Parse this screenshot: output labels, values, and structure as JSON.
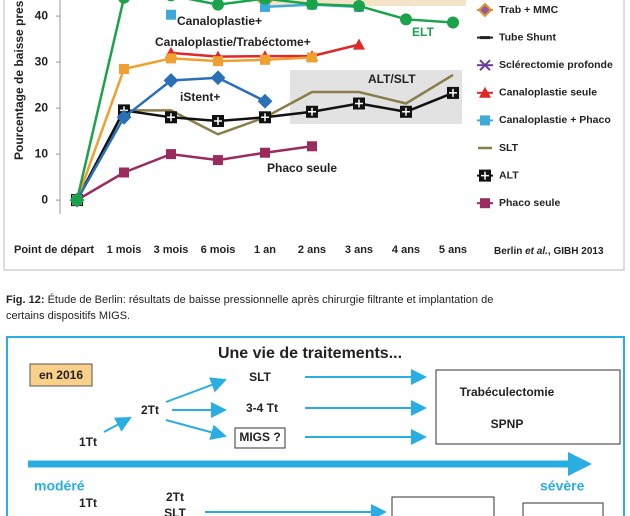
{
  "chart_data": {
    "type": "line",
    "ylabel": "Pourcentage de baisse pres",
    "categories": [
      "Point de départ",
      "1 mois",
      "3 mois",
      "6 mois",
      "1 an",
      "2 ans",
      "3 ans",
      "4 ans",
      "5 ans"
    ],
    "ylim": [
      -3,
      43.5
    ],
    "yticks": [
      0,
      10,
      20,
      30,
      40
    ],
    "series": [
      {
        "name": "Trab + MMC",
        "color": "#e8902a",
        "marker": "diamond",
        "legend": true,
        "values": [
          null,
          null,
          null,
          null,
          43.2,
          null,
          null,
          null,
          null
        ]
      },
      {
        "name": "Tube Shunt",
        "color": "#222222",
        "marker": "dash",
        "legend": true,
        "values": [
          null,
          null,
          null,
          null,
          null,
          null,
          null,
          null,
          null
        ]
      },
      {
        "name": "Sclérectomie profonde",
        "color": "#6a3d9a",
        "marker": "x",
        "legend": true,
        "values": [
          null,
          null,
          null,
          null,
          null,
          null,
          null,
          null,
          null
        ]
      },
      {
        "name": "Canaloplastie seule",
        "color": "#e02828",
        "marker": "triangle",
        "legend": true,
        "values": [
          null,
          null,
          32,
          31.2,
          31.3,
          31.3,
          33.8,
          null,
          null
        ]
      },
      {
        "name": "Canaloplastie + Phaco",
        "color": "#3fa9d9",
        "marker": "square",
        "legend": true,
        "values": [
          null,
          null,
          40.3,
          null,
          42,
          42.5,
          42,
          null,
          null
        ]
      },
      {
        "name": "SLT",
        "color": "#8b7d4a",
        "marker": "none",
        "legend": true,
        "values": [
          0,
          19.5,
          19.5,
          14.3,
          18,
          23.5,
          23.5,
          21,
          27.2
        ]
      },
      {
        "name": "ALT",
        "color": "#111111",
        "marker": "plus-square",
        "legend": true,
        "values": [
          0,
          19.5,
          18,
          17.2,
          18,
          19.2,
          21,
          19.2,
          23.3
        ]
      },
      {
        "name": "Phaco seule",
        "color": "#9b2a5e",
        "marker": "square",
        "legend": true,
        "values": [
          0,
          6,
          10,
          8.7,
          10.3,
          11.7,
          null,
          null,
          null
        ]
      },
      {
        "name": "Canaloplastie/Trabéctome+",
        "color": "#f0a030",
        "marker": "square",
        "legend": false,
        "values": [
          0,
          28.5,
          30.8,
          30.2,
          30.5,
          31,
          null,
          null,
          null
        ]
      },
      {
        "name": "iStent+",
        "color": "#2a70b8",
        "marker": "diamond",
        "legend": false,
        "values": [
          0,
          18,
          26,
          26.6,
          21.5,
          null,
          null,
          null,
          null
        ]
      },
      {
        "name": "ELT",
        "color": "#1aa34a",
        "marker": "circle",
        "legend": false,
        "values": [
          0,
          44,
          44.5,
          42.5,
          43.8,
          42.6,
          42.2,
          39.3,
          38.6
        ]
      }
    ],
    "annotations": [
      "Canaloplastie+",
      "ALT/SLT",
      "Phaco seule"
    ],
    "source": [
      "Berlin ",
      "et al.",
      ", GIBH 2013"
    ]
  },
  "caption": {
    "label": "Fig. 12:",
    "text": " Étude de Berlin: résultats de baisse pressionnelle après chirurgie filtrante et implantation de certains dispositifs MIGS."
  },
  "diagram": {
    "title": "Une vie de traitements...",
    "badge": "en 2016",
    "upper": {
      "start": "1Tt",
      "middle": "2Tt",
      "options": [
        "SLT",
        "3-4 Tt",
        "MIGS ?"
      ],
      "outcomes": [
        "Trabéculectomie",
        "SPNP"
      ]
    },
    "scale": {
      "left": "modéré",
      "right": "sévère"
    },
    "lower": {
      "start": "1Tt",
      "middle": [
        "2Tt",
        "SLT"
      ]
    }
  }
}
